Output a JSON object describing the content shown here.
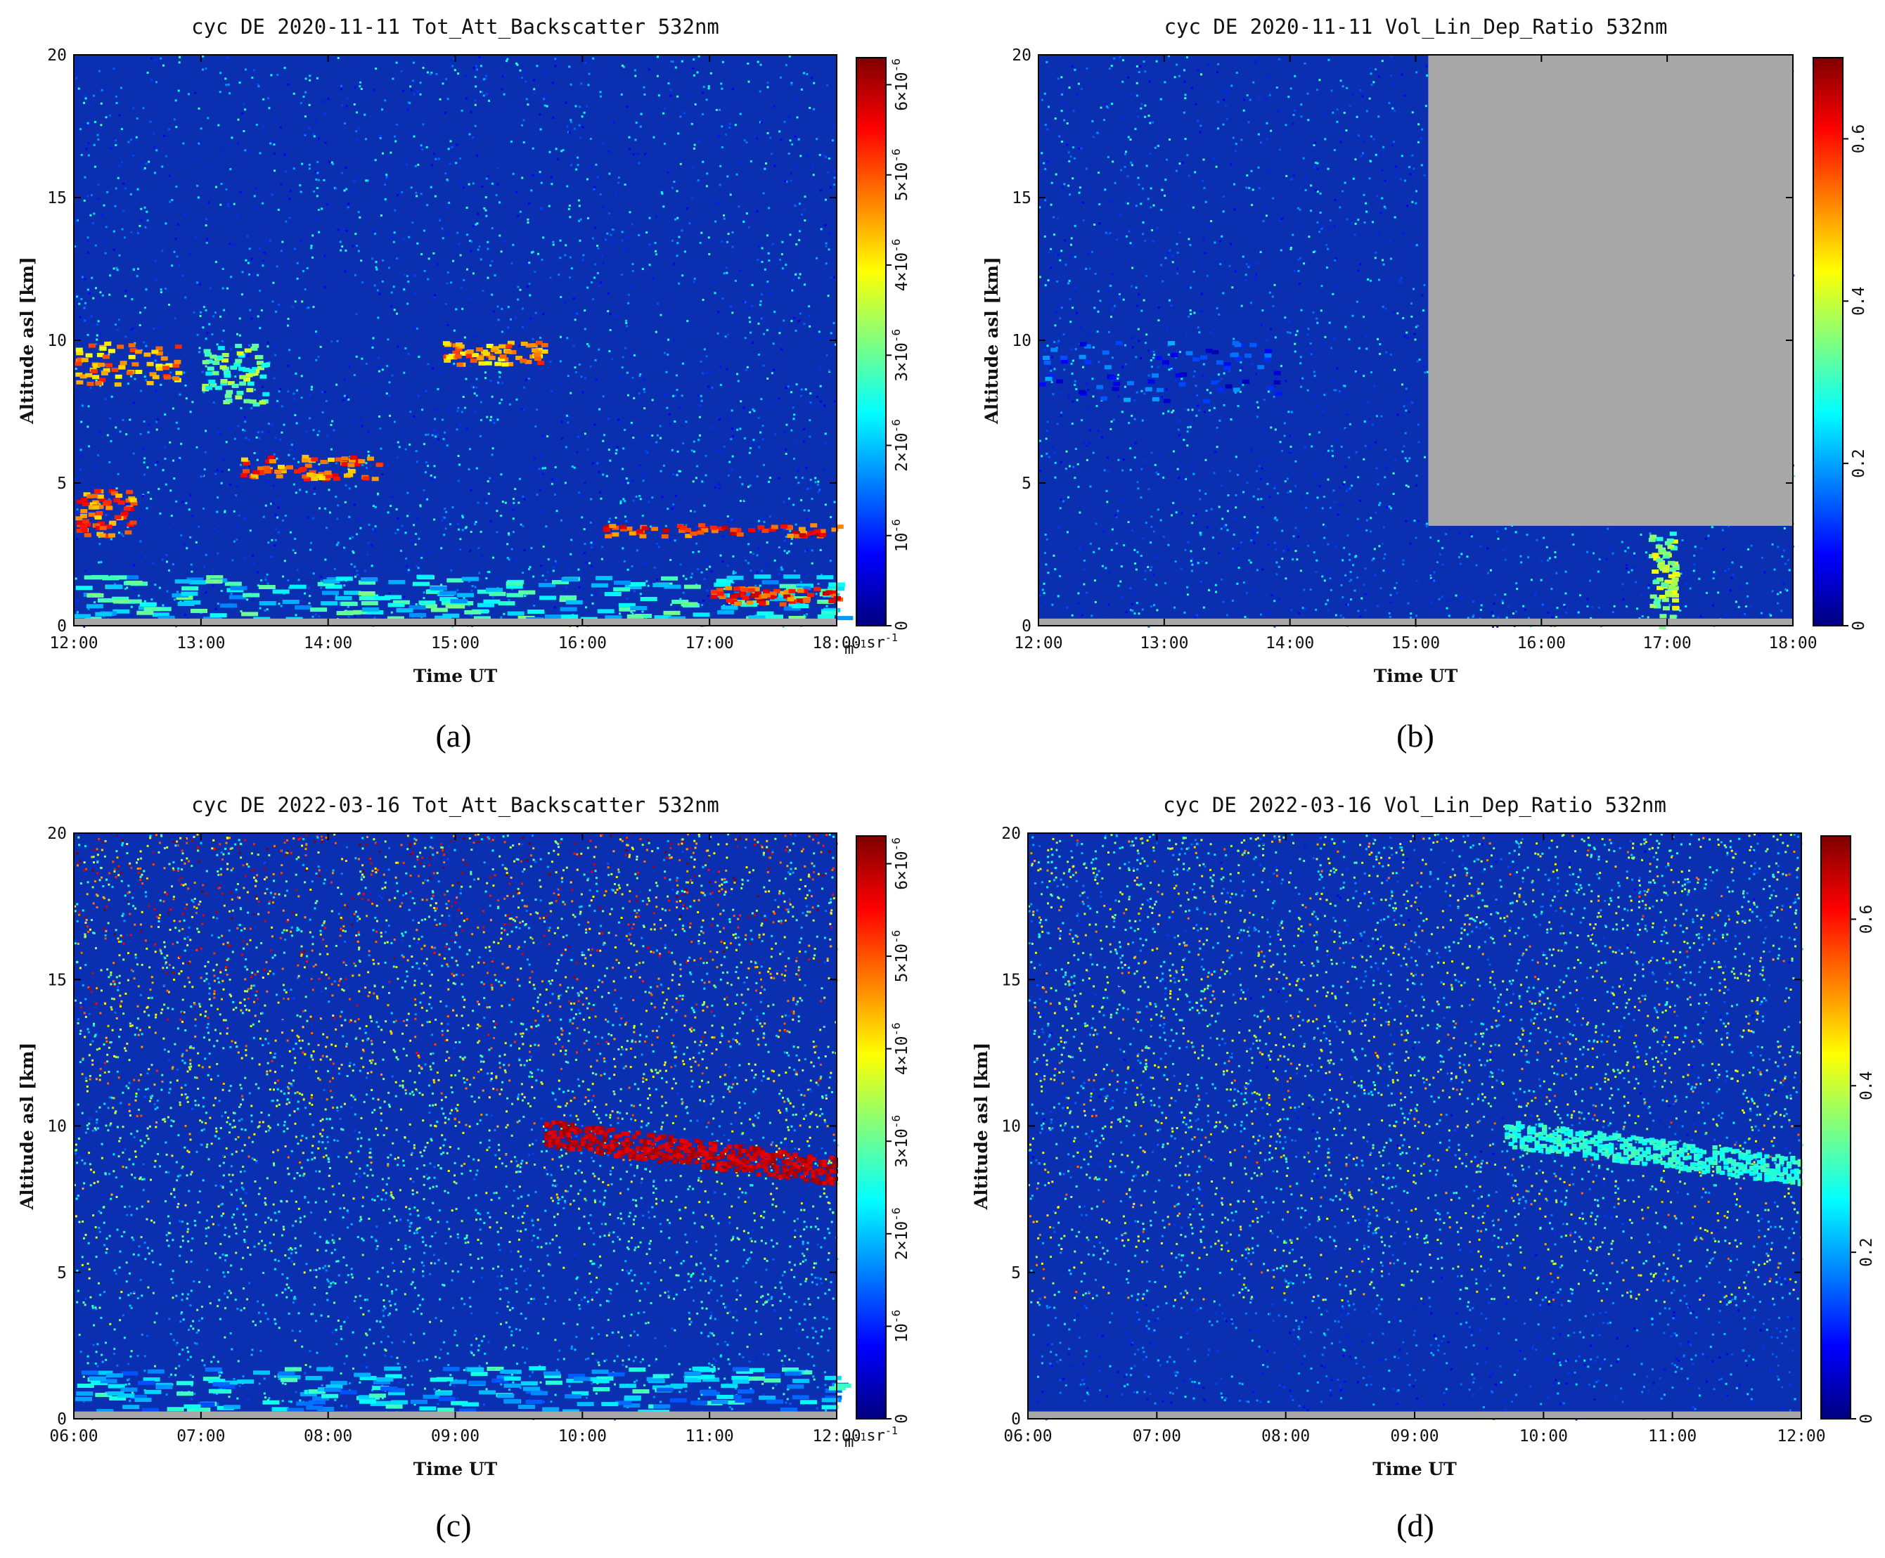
{
  "figure": {
    "panels": [
      {
        "id": "a",
        "label": "(a)",
        "title": "cyc DE 2020-11-11 Tot_Att_Backscatter 532nm"
      },
      {
        "id": "b",
        "label": "(b)",
        "title": "cyc DE 2020-11-11 Vol_Lin_Dep_Ratio 532nm"
      },
      {
        "id": "c",
        "label": "(c)",
        "title": "cyc DE 2022-03-16 Tot_Att_Backscatter 532nm"
      },
      {
        "id": "d",
        "label": "(d)",
        "title": "cyc DE 2022-03-16 Vol_Lin_Dep_Ratio 532nm"
      }
    ]
  },
  "colors": {
    "colormap": [
      "#00007f",
      "#0000ff",
      "#007fff",
      "#00ffff",
      "#7fff7f",
      "#ffff00",
      "#ff7f00",
      "#ff0000",
      "#7f0000"
    ],
    "missing_data": "#a8a8a8",
    "background_field": "#0a2fb0"
  },
  "chart_data": [
    {
      "type": "heatmap",
      "panel": "a",
      "title": "cyc DE 2020-11-11 Tot_Att_Backscatter 532nm",
      "xlabel": "Time UT",
      "ylabel": "Altitude asl [km]",
      "x_ticks": [
        "12:00",
        "13:00",
        "14:00",
        "15:00",
        "16:00",
        "17:00",
        "18:00"
      ],
      "y_ticks": [
        "0",
        "5",
        "10",
        "15",
        "20"
      ],
      "xlim": [
        "12:00",
        "18:00"
      ],
      "ylim": [
        0,
        20
      ],
      "colorbar": {
        "range": [
          0,
          6.3e-06
        ],
        "ticks": [
          "0",
          "10^-6",
          "2×10^-6",
          "3×10^-6",
          "4×10^-6",
          "5×10^-6",
          "6×10^-6"
        ],
        "tick_values": [
          0,
          1e-06,
          2e-06,
          3e-06,
          4e-06,
          5e-06,
          6e-06
        ],
        "units": "m^-1sr^-1"
      },
      "features": [
        {
          "kind": "boundary_layer",
          "t_start": 12.0,
          "t_end": 18.0,
          "alt_min": 0.3,
          "alt_max": 1.8,
          "level": 0.5
        },
        {
          "kind": "cloud",
          "t_start": 12.0,
          "t_end": 12.45,
          "alt_min": 3.2,
          "alt_max": 4.8,
          "level": 0.9
        },
        {
          "kind": "cloud",
          "t_start": 12.0,
          "t_end": 12.8,
          "alt_min": 8.5,
          "alt_max": 10.0,
          "level": 0.85
        },
        {
          "kind": "cloud",
          "t_start": 13.0,
          "t_end": 13.5,
          "alt_min": 7.8,
          "alt_max": 9.9,
          "level": 0.6
        },
        {
          "kind": "cloud",
          "t_start": 13.3,
          "t_end": 14.4,
          "alt_min": 5.2,
          "alt_max": 6.0,
          "level": 0.9
        },
        {
          "kind": "cloud",
          "t_start": 14.9,
          "t_end": 15.7,
          "alt_min": 9.2,
          "alt_max": 10.0,
          "level": 0.85
        },
        {
          "kind": "cloud",
          "t_start": 16.0,
          "t_end": 18.0,
          "alt_min": 3.2,
          "alt_max": 3.6,
          "level": 0.95
        },
        {
          "kind": "cloud",
          "t_start": 17.0,
          "t_end": 18.0,
          "alt_min": 0.8,
          "alt_max": 1.4,
          "level": 0.95
        }
      ]
    },
    {
      "type": "heatmap",
      "panel": "b",
      "title": "cyc DE 2020-11-11 Vol_Lin_Dep_Ratio 532nm",
      "xlabel": "Time UT",
      "ylabel": "Altitude asl [km]",
      "x_ticks": [
        "12:00",
        "13:00",
        "14:00",
        "15:00",
        "16:00",
        "17:00",
        "18:00"
      ],
      "y_ticks": [
        "0",
        "5",
        "10",
        "15",
        "20"
      ],
      "xlim": [
        "12:00",
        "18:00"
      ],
      "ylim": [
        0,
        20
      ],
      "colorbar": {
        "range": [
          0,
          0.7
        ],
        "ticks": [
          "0",
          "0.2",
          "0.4",
          "0.6"
        ],
        "tick_values": [
          0,
          0.2,
          0.4,
          0.6
        ]
      },
      "features": [
        {
          "kind": "masked_region",
          "t_start": 15.1,
          "t_end": 18.0,
          "alt_min": 3.5,
          "alt_max": 20.0
        },
        {
          "kind": "high_depolarization_column",
          "t_start": 16.85,
          "t_end": 17.05,
          "alt_min": 0.0,
          "alt_max": 3.3,
          "level": 0.65
        },
        {
          "kind": "cloud",
          "t_start": 12.0,
          "t_end": 13.9,
          "alt_min": 7.9,
          "alt_max": 10.0,
          "level": 0.3
        }
      ]
    },
    {
      "type": "heatmap",
      "panel": "c",
      "title": "cyc DE 2022-03-16 Tot_Att_Backscatter 532nm",
      "xlabel": "Time UT",
      "ylabel": "Altitude asl [km]",
      "x_ticks": [
        "06:00",
        "07:00",
        "08:00",
        "09:00",
        "10:00",
        "11:00",
        "12:00"
      ],
      "y_ticks": [
        "0",
        "5",
        "10",
        "15",
        "20"
      ],
      "xlim": [
        "06:00",
        "12:00"
      ],
      "ylim": [
        0,
        20
      ],
      "colorbar": {
        "range": [
          0,
          6.3e-06
        ],
        "ticks": [
          "0",
          "10^-6",
          "2×10^-6",
          "3×10^-6",
          "4×10^-6",
          "5×10^-6",
          "6×10^-6"
        ],
        "tick_values": [
          0,
          1e-06,
          2e-06,
          3e-06,
          4e-06,
          5e-06,
          6e-06
        ],
        "units": "m^-1sr^-1"
      },
      "features": [
        {
          "kind": "boundary_layer",
          "t_start": 6.0,
          "t_end": 12.0,
          "alt_min": 0.3,
          "alt_max": 1.8,
          "level": 0.45
        },
        {
          "kind": "layer",
          "t_start": 9.7,
          "t_end": 12.0,
          "alt_start": 9.8,
          "alt_end": 8.5,
          "thickness": 0.9,
          "level": 0.97
        }
      ]
    },
    {
      "type": "heatmap",
      "panel": "d",
      "title": "cyc DE 2022-03-16 Vol_Lin_Dep_Ratio 532nm",
      "xlabel": "Time UT",
      "ylabel": "Altitude asl [km]",
      "x_ticks": [
        "06:00",
        "07:00",
        "08:00",
        "09:00",
        "10:00",
        "11:00",
        "12:00"
      ],
      "y_ticks": [
        "0",
        "5",
        "10",
        "15",
        "20"
      ],
      "xlim": [
        "06:00",
        "12:00"
      ],
      "ylim": [
        0,
        20
      ],
      "colorbar": {
        "range": [
          0,
          0.7
        ],
        "ticks": [
          "0",
          "0.2",
          "0.4",
          "0.6"
        ],
        "tick_values": [
          0,
          0.2,
          0.4,
          0.6
        ]
      },
      "features": [
        {
          "kind": "layer",
          "t_start": 9.7,
          "t_end": 12.0,
          "alt_start": 9.8,
          "alt_end": 8.5,
          "thickness": 0.9,
          "level": 0.45
        }
      ]
    }
  ]
}
